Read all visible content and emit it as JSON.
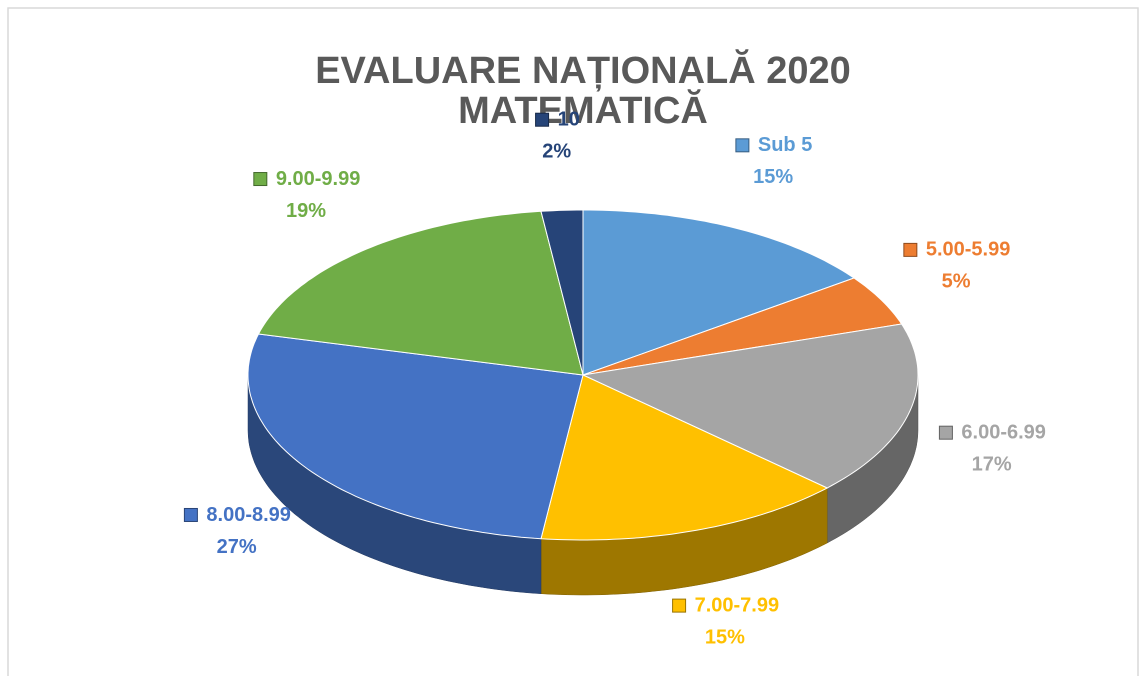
{
  "chart_data": {
    "type": "pie",
    "title": [
      "EVALUARE NAȚIONALĂ 2020",
      "MATEMATICĂ"
    ],
    "categories": [
      "Sub 5",
      "5.00-5.99",
      "6.00-6.99",
      "7.00-7.99",
      "8.00-8.99",
      "9.00-9.99",
      "10"
    ],
    "values": [
      15,
      5,
      17,
      15,
      27,
      19,
      2
    ],
    "value_labels": [
      "15%",
      "5%",
      "17%",
      "15%",
      "27%",
      "19%",
      "2%"
    ],
    "colors": [
      "#5b9bd5",
      "#ed7d31",
      "#a5a5a5",
      "#ffc000",
      "#4472c4",
      "#70ad47",
      "#264478"
    ]
  }
}
